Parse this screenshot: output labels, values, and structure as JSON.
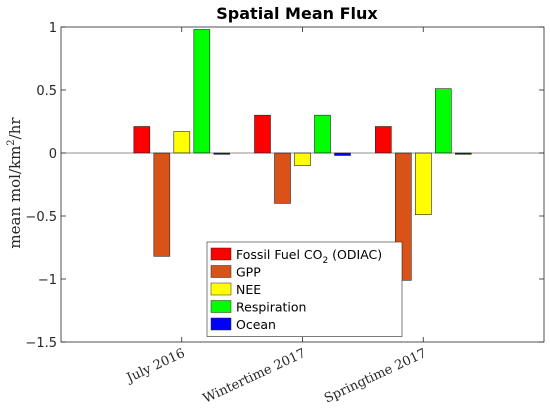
{
  "chart_data": {
    "type": "bar",
    "title": "Spatial Mean Flux",
    "ylabel": "mean mol/km²/hr",
    "ylabel_parts": {
      "prefix": "mean mol/km",
      "sup": "2",
      "suffix": "/hr"
    },
    "xlabel": "",
    "categories": [
      "July 2016",
      "Wintertime 2017",
      "Springtime 2017"
    ],
    "ylim": [
      -1.5,
      1
    ],
    "yticks": [
      {
        "value": -1.5,
        "label": "−1.5"
      },
      {
        "value": -1,
        "label": "−1"
      },
      {
        "value": -0.5,
        "label": "−0.5"
      },
      {
        "value": 0,
        "label": "0"
      },
      {
        "value": 0.5,
        "label": "0.5"
      },
      {
        "value": 1,
        "label": "1"
      }
    ],
    "grid": false,
    "legend_position": "bottom-center",
    "series": [
      {
        "name": "Fossil Fuel CO₂ (ODIAC)",
        "name_parts": {
          "prefix": "Fossil Fuel CO",
          "sub": "2",
          "suffix": " (ODIAC)"
        },
        "color": "#ff0000",
        "values": [
          0.21,
          0.3,
          0.21
        ]
      },
      {
        "name": "GPP",
        "color": "#d95319",
        "values": [
          -0.82,
          -0.4,
          -1.01
        ]
      },
      {
        "name": "NEE",
        "color": "#ffff00",
        "values": [
          0.17,
          -0.1,
          -0.49
        ]
      },
      {
        "name": "Respiration",
        "color": "#00ff00",
        "values": [
          0.98,
          0.3,
          0.51
        ]
      },
      {
        "name": "Ocean",
        "color": "#0000ff",
        "values": [
          -0.01,
          -0.02,
          -0.01
        ]
      }
    ]
  }
}
